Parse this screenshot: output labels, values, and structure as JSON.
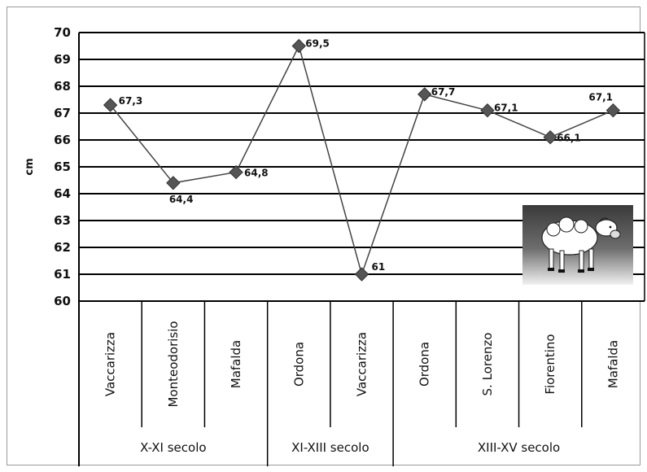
{
  "chart_data": {
    "type": "line",
    "ylabel": "cm",
    "ylim": [
      60,
      70
    ],
    "yticks": [
      60,
      61,
      62,
      63,
      64,
      65,
      66,
      67,
      68,
      69,
      70
    ],
    "grid": true,
    "legend": "none",
    "categories": [
      "Vaccarizza",
      "Monteodorisio",
      "Mafalda",
      "Ordona",
      "Vaccarizza",
      "Ordona",
      "S. Lorenzo",
      "Fiorentino",
      "Mafalda"
    ],
    "groups": [
      {
        "label": "X-XI secolo",
        "span": 3
      },
      {
        "label": "XI-XIII secolo",
        "span": 2
      },
      {
        "label": "XIII-XV secolo",
        "span": 4
      }
    ],
    "series": [
      {
        "values": [
          67.3,
          64.4,
          64.8,
          69.5,
          61,
          67.7,
          67.1,
          66.1,
          67.1
        ],
        "value_labels": [
          "67,3",
          "64,4",
          "64,8",
          "69,5",
          "61",
          "67,7",
          "67,1",
          "66,1",
          "67,1"
        ],
        "color": "#444444"
      }
    ],
    "image_icon": "sheep-image"
  }
}
